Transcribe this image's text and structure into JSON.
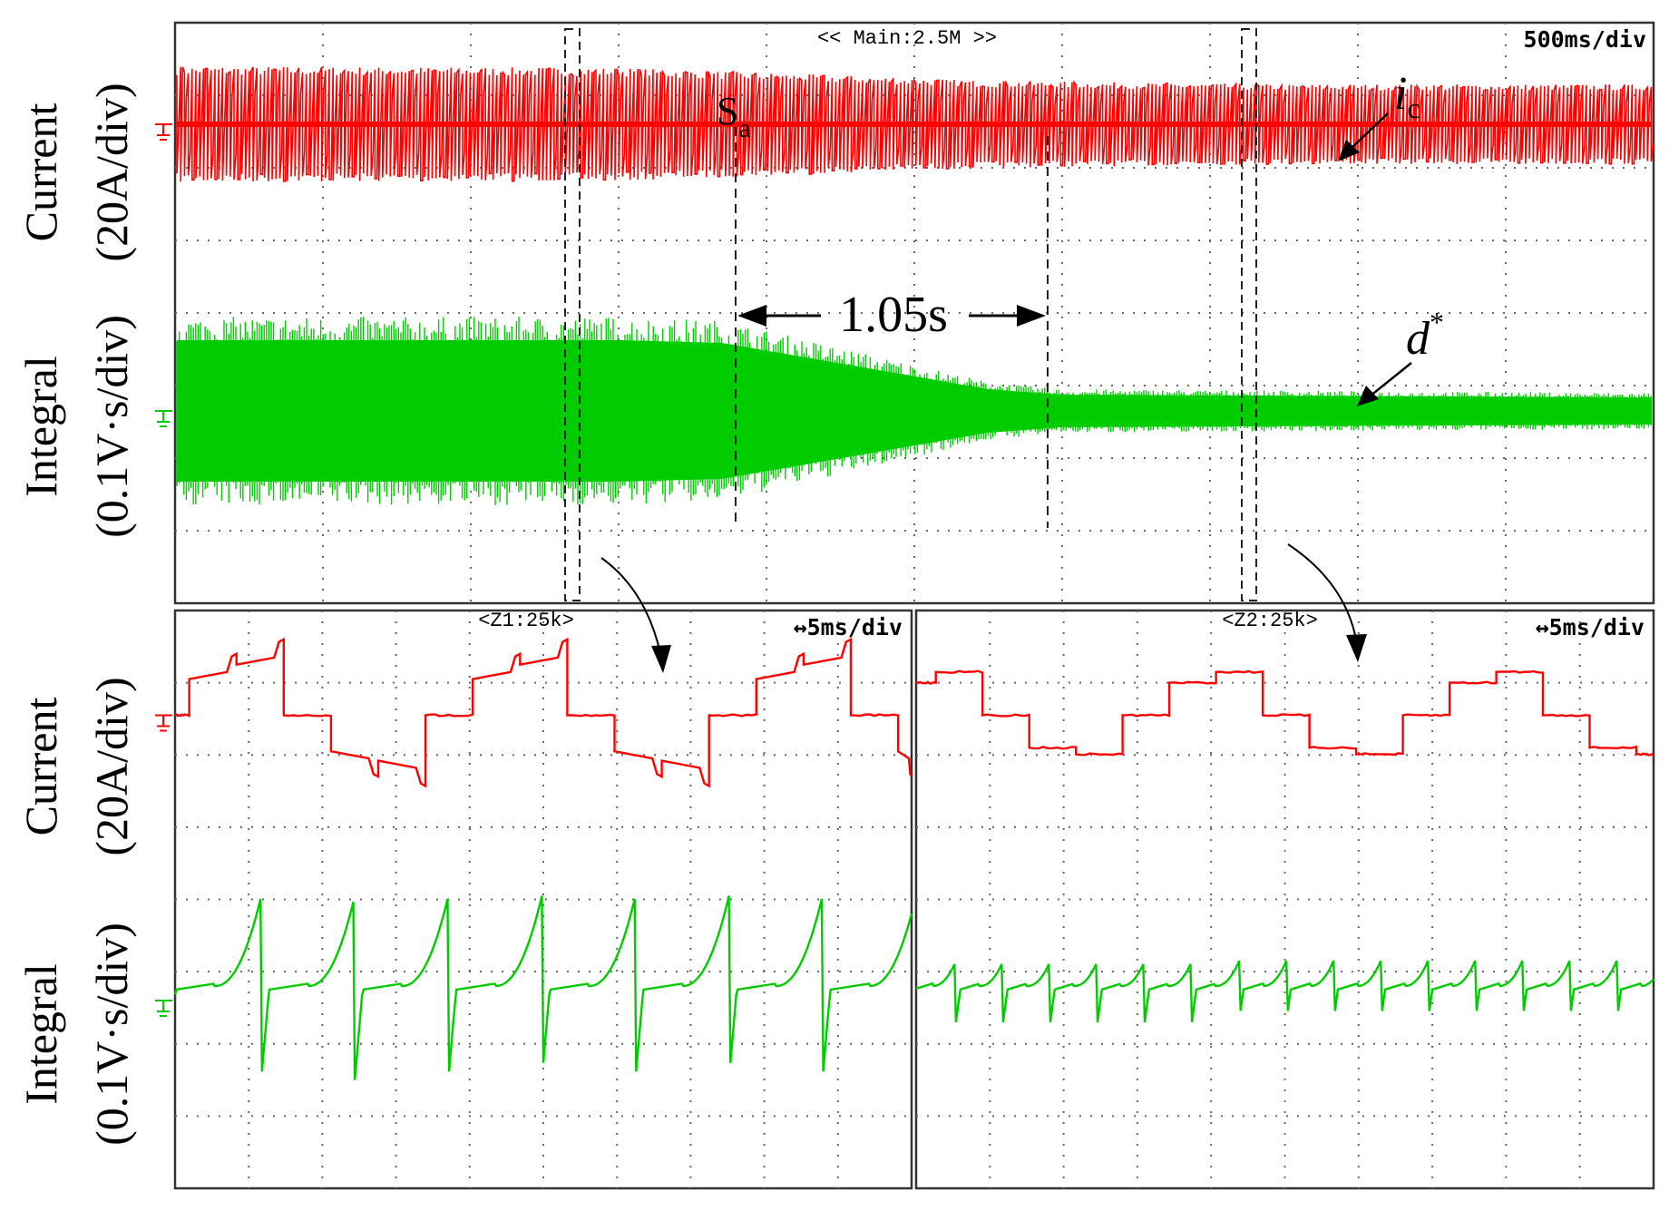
{
  "chart_data": [
    {
      "type": "line",
      "panel": "main",
      "header": "<< Main:2.5M >>",
      "time_per_div": "500ms/div",
      "grid": true,
      "x_divisions": 10,
      "y_divisions": 8,
      "channels": [
        {
          "label": "Current",
          "scale": "(20A/div)",
          "color": "#ff0000"
        },
        {
          "label": "Integral",
          "scale": "(0.1V·s/div)",
          "color": "#00cc00"
        }
      ],
      "series": [
        {
          "name": "i_c",
          "color": "#ff0000",
          "pattern": "dense_square",
          "offset_div": 6.6,
          "description_x_div": [
            0,
            10
          ],
          "amplitude_div": [
            [
              0,
              0.8
            ],
            [
              3.0,
              0.78
            ],
            [
              5.5,
              0.6
            ],
            [
              7.5,
              0.55
            ],
            [
              10,
              0.55
            ]
          ]
        },
        {
          "name": "d*",
          "color": "#00cc00",
          "pattern": "dense_noise",
          "offset_div": 2.65,
          "amplitude_div": [
            [
              0,
              1.3
            ],
            [
              3.0,
              1.3
            ],
            [
              3.7,
              1.25
            ],
            [
              5.5,
              0.4
            ],
            [
              6.0,
              0.3
            ],
            [
              10,
              0.25
            ]
          ]
        }
      ],
      "annotations": {
        "switch_label": "S",
        "switch_sub": "a",
        "switch_x_div": 3.6,
        "settle_x_div": 5.65,
        "interval_text": "1.05s",
        "ic_label_main": "i",
        "ic_label_sub": "c",
        "d_label_main": "d",
        "d_label_sup": "*",
        "zoom_boxes_x_div": [
          2.5,
          6.9
        ]
      }
    },
    {
      "type": "line",
      "panel": "zoom1",
      "header": "<Z1:25k>",
      "time_per_div": "↔5ms/div",
      "grid": true,
      "x_divisions": 10,
      "y_divisions": 8,
      "series": [
        {
          "name": "i_c",
          "color": "#ff0000",
          "waveform": "six_step_with_spikes",
          "offset_div": 6.55,
          "levels_div": [
            0,
            0.5,
            0.7
          ],
          "period_div": 3.85,
          "phase_div": 0.45
        },
        {
          "name": "d*",
          "color": "#00cc00",
          "waveform": "sawtooth_large",
          "offset_div": 2.6,
          "peak_div": 1.45,
          "trough_div": -1.1,
          "period_div": 1.27
        }
      ]
    },
    {
      "type": "line",
      "panel": "zoom2",
      "header": "<Z2:25k>",
      "time_per_div": "↔5ms/div",
      "grid": true,
      "x_divisions": 10,
      "y_divisions": 8,
      "series": [
        {
          "name": "i_c",
          "color": "#ff0000",
          "waveform": "six_step_flat",
          "offset_div": 6.55,
          "levels_div": [
            0,
            0.45,
            0.6
          ],
          "period_div": 3.8,
          "phase_div": 1.0
        },
        {
          "name": "d*",
          "color": "#00cc00",
          "waveform": "sawtooth_small",
          "offset_div": 2.6,
          "peak_div": 0.55,
          "trough_div": -0.3,
          "period_div": 0.64
        }
      ]
    }
  ],
  "labels": {
    "main_current_label": "Current",
    "main_current_scale": "(20A/div)",
    "main_integral_label": "Integral",
    "main_integral_scale": "(0.1V·s/div)",
    "zoom_current_label": "Current",
    "zoom_current_scale": "(20A/div)",
    "zoom_integral_label": "Integral",
    "zoom_integral_scale": "(0.1V·s/div)"
  }
}
